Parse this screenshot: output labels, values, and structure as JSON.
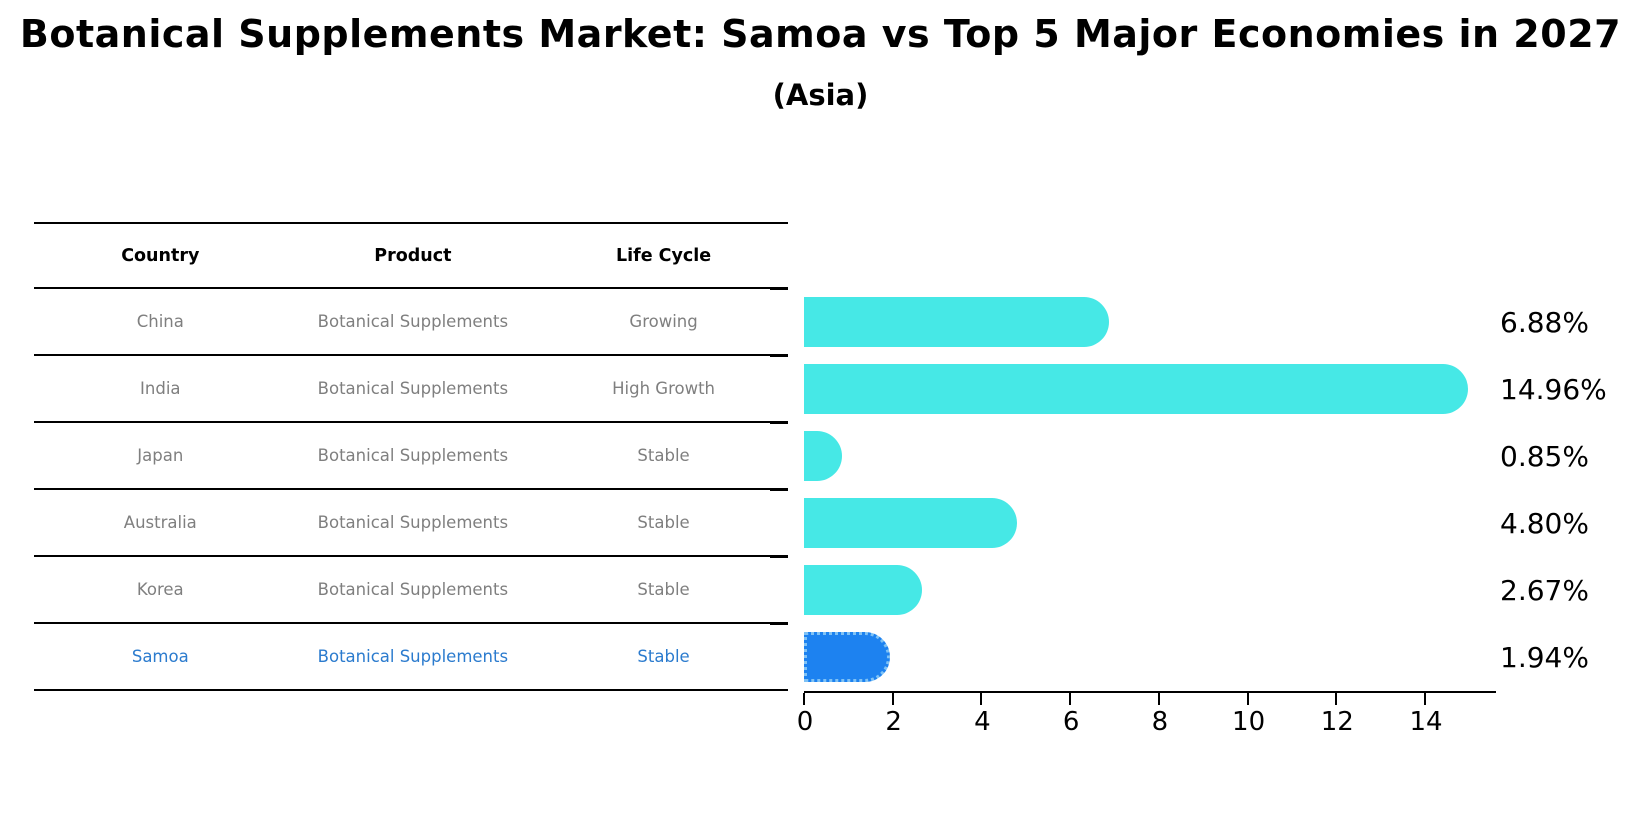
{
  "title": "Botanical Supplements Market: Samoa vs Top 5 Major Economies in 2027",
  "subtitle": "(Asia)",
  "table": {
    "headers": [
      "Country",
      "Product",
      "Life Cycle"
    ],
    "rows": [
      {
        "country": "China",
        "product": "Botanical Supplements",
        "life_cycle": "Growing",
        "highlighted": false
      },
      {
        "country": "India",
        "product": "Botanical Supplements",
        "life_cycle": "High Growth",
        "highlighted": false
      },
      {
        "country": "Japan",
        "product": "Botanical Supplements",
        "life_cycle": "Stable",
        "highlighted": false
      },
      {
        "country": "Australia",
        "product": "Botanical Supplements",
        "life_cycle": "Stable",
        "highlighted": false
      },
      {
        "country": "Korea",
        "product": "Botanical Supplements",
        "life_cycle": "Stable",
        "highlighted": false
      },
      {
        "country": "Samoa",
        "product": "Botanical Supplements",
        "life_cycle": "Stable",
        "highlighted": true
      }
    ]
  },
  "chart_data": {
    "type": "bar",
    "orientation": "horizontal",
    "title": "Botanical Supplements Market: Samoa vs Top 5 Major Economies in 2027",
    "subtitle": "(Asia)",
    "categories": [
      "China",
      "India",
      "Japan",
      "Australia",
      "Korea",
      "Samoa"
    ],
    "values": [
      6.88,
      14.96,
      0.85,
      4.8,
      2.67,
      1.94
    ],
    "value_labels": [
      "6.88%",
      "14.96%",
      "0.85%",
      "4.80%",
      "2.67%",
      "1.94%"
    ],
    "xlabel": "",
    "ylabel": "",
    "xlim": [
      0,
      15.6
    ],
    "xticks": [
      0,
      2,
      4,
      6,
      8,
      10,
      12,
      14
    ],
    "grid": false,
    "legend": null,
    "bar_color": "#46e8e6",
    "highlight_bar_color": "#1d82f0",
    "highlight_index": 5
  },
  "colors": {
    "header_text": "#000000",
    "row_text": "#7f7f7f",
    "highlight_text": "#2b7bce",
    "value_label_text": "#000000",
    "axis": "#000000",
    "highlight_border": "#7fc2f5"
  }
}
